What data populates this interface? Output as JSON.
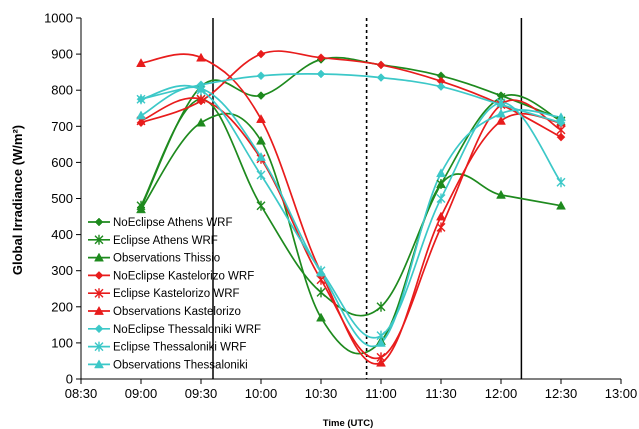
{
  "chart_data": {
    "type": "line",
    "xlabel": "Time (UTC)",
    "ylabel": "Global Irradiance (W/m²)",
    "x_ticks": [
      "08:30",
      "09:00",
      "09:30",
      "10:00",
      "10:30",
      "11:00",
      "11:30",
      "12:00",
      "12:30",
      "13:00"
    ],
    "x_tick_hours": [
      8.5,
      9,
      9.5,
      10,
      10.5,
      11,
      11.5,
      12,
      12.5,
      13
    ],
    "y_ticks": [
      0,
      100,
      200,
      300,
      400,
      500,
      600,
      700,
      800,
      900,
      1000
    ],
    "xlim": [
      8.5,
      13
    ],
    "ylim": [
      0,
      1000
    ],
    "vertical_lines": [
      {
        "x": 9.6,
        "style": "solid"
      },
      {
        "x": 10.88,
        "style": "dotted"
      },
      {
        "x": 12.17,
        "style": "solid"
      }
    ],
    "series": [
      {
        "name": "NoEclipse Athens WRF",
        "color": "#1e8a1e",
        "marker": "diamond",
        "x": [
          9,
          9.5,
          10,
          10.5,
          11,
          11.5,
          12,
          12.5
        ],
        "y": [
          475,
          810,
          785,
          885,
          870,
          840,
          785,
          720
        ]
      },
      {
        "name": "Eclipse Athens WRF",
        "color": "#1e8a1e",
        "marker": "star",
        "x": [
          9,
          9.5,
          10,
          10.5,
          11,
          11.5,
          12,
          12.5
        ],
        "y": [
          480,
          775,
          480,
          240,
          200,
          540,
          780,
          715
        ]
      },
      {
        "name": "Observations Thissio",
        "color": "#1e8a1e",
        "marker": "triangle",
        "x": [
          9,
          9.5,
          10,
          10.5,
          11,
          11.5,
          12,
          12.5
        ],
        "y": [
          470,
          710,
          660,
          170,
          105,
          540,
          510,
          480
        ]
      },
      {
        "name": "NoEclipse Kastelorizo WRF",
        "color": "#e81c1c",
        "marker": "diamond",
        "x": [
          9,
          9.5,
          10,
          10.5,
          11,
          11.5,
          12,
          12.5
        ],
        "y": [
          710,
          770,
          900,
          890,
          870,
          825,
          760,
          670
        ]
      },
      {
        "name": "Eclipse Kastelorizo WRF",
        "color": "#e81c1c",
        "marker": "star",
        "x": [
          9,
          9.5,
          10,
          10.5,
          11,
          11.5,
          12,
          12.5
        ],
        "y": [
          715,
          775,
          610,
          275,
          60,
          420,
          760,
          690
        ]
      },
      {
        "name": "Observations Kastelorizo",
        "color": "#e81c1c",
        "marker": "triangle",
        "x": [
          9,
          9.5,
          10,
          10.5,
          11,
          11.5,
          12,
          12.5
        ],
        "y": [
          875,
          890,
          720,
          295,
          45,
          450,
          715,
          710
        ]
      },
      {
        "name": "NoEclipse Thessaloniki WRF",
        "color": "#3cc8c8",
        "marker": "diamond",
        "x": [
          9,
          9.5,
          10,
          10.5,
          11,
          11.5,
          12,
          12.5
        ],
        "y": [
          775,
          815,
          840,
          845,
          835,
          810,
          760,
          710
        ]
      },
      {
        "name": "Eclipse Thessaloniki WRF",
        "color": "#3cc8c8",
        "marker": "star",
        "x": [
          9,
          9.5,
          10,
          10.5,
          11,
          11.5,
          12,
          12.5
        ],
        "y": [
          775,
          800,
          565,
          300,
          120,
          500,
          765,
          545
        ]
      },
      {
        "name": "Observations Thessaloniki",
        "color": "#3cc8c8",
        "marker": "triangle",
        "x": [
          9,
          9.5,
          10,
          10.5,
          11,
          11.5,
          12,
          12.5
        ],
        "y": [
          730,
          805,
          615,
          295,
          100,
          570,
          735,
          725
        ]
      }
    ],
    "legend_position": "bottom-left",
    "grid": false
  }
}
